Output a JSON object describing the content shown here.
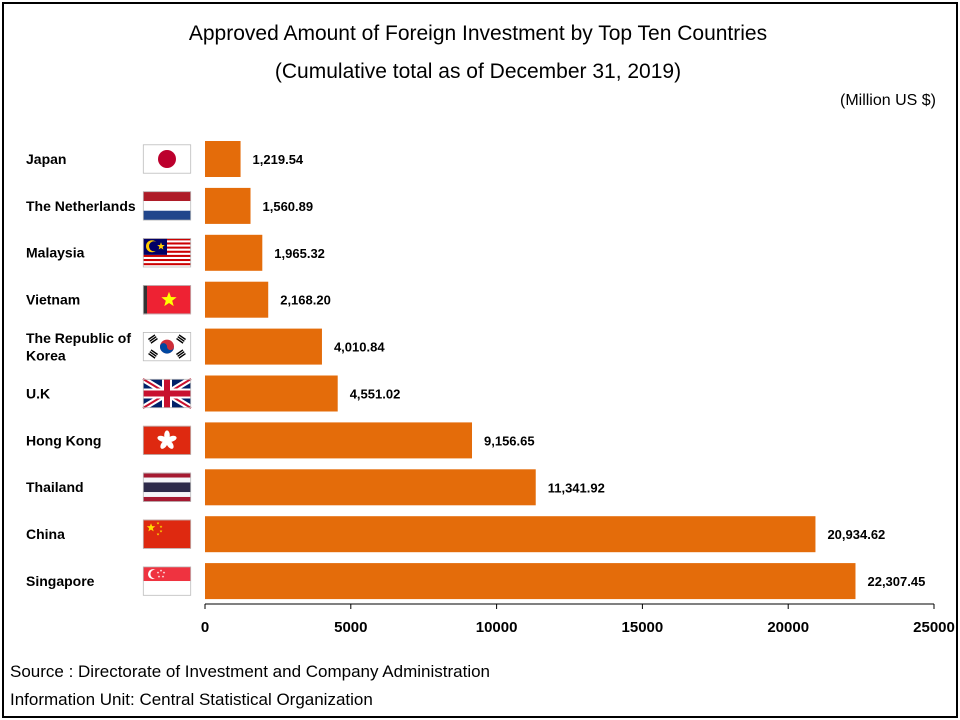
{
  "chart_data": {
    "type": "bar",
    "orientation": "horizontal",
    "title": "Approved Amount of Foreign Investment by Top Ten Countries",
    "subtitle": "(Cumulative total as of December  31, 2019)",
    "unit": "(Million US $)",
    "categories": [
      "Japan",
      "The Netherlands",
      "Malaysia",
      "Vietnam",
      "The Republic of Korea",
      "U.K",
      "Hong Kong",
      "Thailand",
      "China",
      "Singapore"
    ],
    "category_lines": [
      [
        "Japan"
      ],
      [
        "The Netherlands"
      ],
      [
        "Malaysia"
      ],
      [
        "Vietnam"
      ],
      [
        "The Republic of",
        "Korea"
      ],
      [
        "U.K"
      ],
      [
        "Hong Kong"
      ],
      [
        "Thailand"
      ],
      [
        "China"
      ],
      [
        "Singapore"
      ]
    ],
    "values": [
      1219.54,
      1560.89,
      1965.32,
      2168.2,
      4010.84,
      4551.02,
      9156.65,
      11341.92,
      20934.62,
      22307.45
    ],
    "value_labels": [
      "1,219.54",
      "1,560.89",
      "1,965.32",
      "2,168.20",
      "4,010.84",
      "4,551.02",
      "9,156.65",
      "11,341.92",
      "20,934.62",
      "22,307.45"
    ],
    "xlim": [
      0,
      25000
    ],
    "x_ticks": [
      0,
      5000,
      10000,
      15000,
      20000,
      25000
    ],
    "x_tick_labels": [
      "0",
      "5000",
      "10000",
      "15000",
      "20000",
      "25000"
    ],
    "bar_color": "#E46C0A",
    "grid": false,
    "flag_icons": [
      "japan-flag-icon",
      "netherlands-flag-icon",
      "malaysia-flag-icon",
      "vietnam-flag-icon",
      "korea-flag-icon",
      "uk-flag-icon",
      "hong-kong-flag-icon",
      "thailand-flag-icon",
      "china-flag-icon",
      "singapore-flag-icon"
    ]
  },
  "footer": {
    "source": "Source : Directorate of Investment and Company Administration",
    "info": "Information Unit:  Central Statistical Organization"
  }
}
